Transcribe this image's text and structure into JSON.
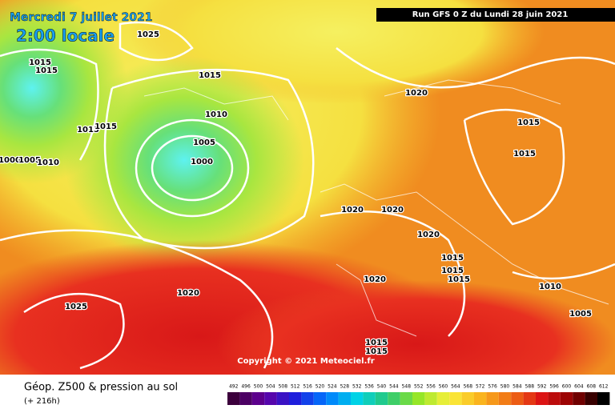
{
  "header": {
    "date": "Mercredi 7 juillet 2021",
    "time": "2:00 locale",
    "run": "Run GFS 0 Z du Lundi 28 juin 2021"
  },
  "copyright": "Copyright © 2021 Meteociel.fr",
  "footer": {
    "title": "Géop. Z500 & pression au sol",
    "lead": "(+ 216h)"
  },
  "scale": [
    492,
    496,
    500,
    504,
    508,
    512,
    516,
    520,
    524,
    528,
    532,
    536,
    540,
    544,
    548,
    552,
    556,
    560,
    564,
    568,
    572,
    576,
    580,
    584,
    588,
    592,
    596,
    600,
    604,
    608,
    612
  ],
  "isobars": [
    "1025",
    "1015",
    "1015",
    "1015",
    "1010",
    "1015",
    "1015",
    "1005",
    "1000",
    "1005",
    "1010",
    "1000",
    "1020",
    "1015",
    "1015",
    "1020",
    "1020",
    "1020",
    "1015",
    "1015",
    "1015",
    "1020",
    "1010",
    "1020",
    "1025",
    "1005",
    "1015",
    "1015"
  ]
}
